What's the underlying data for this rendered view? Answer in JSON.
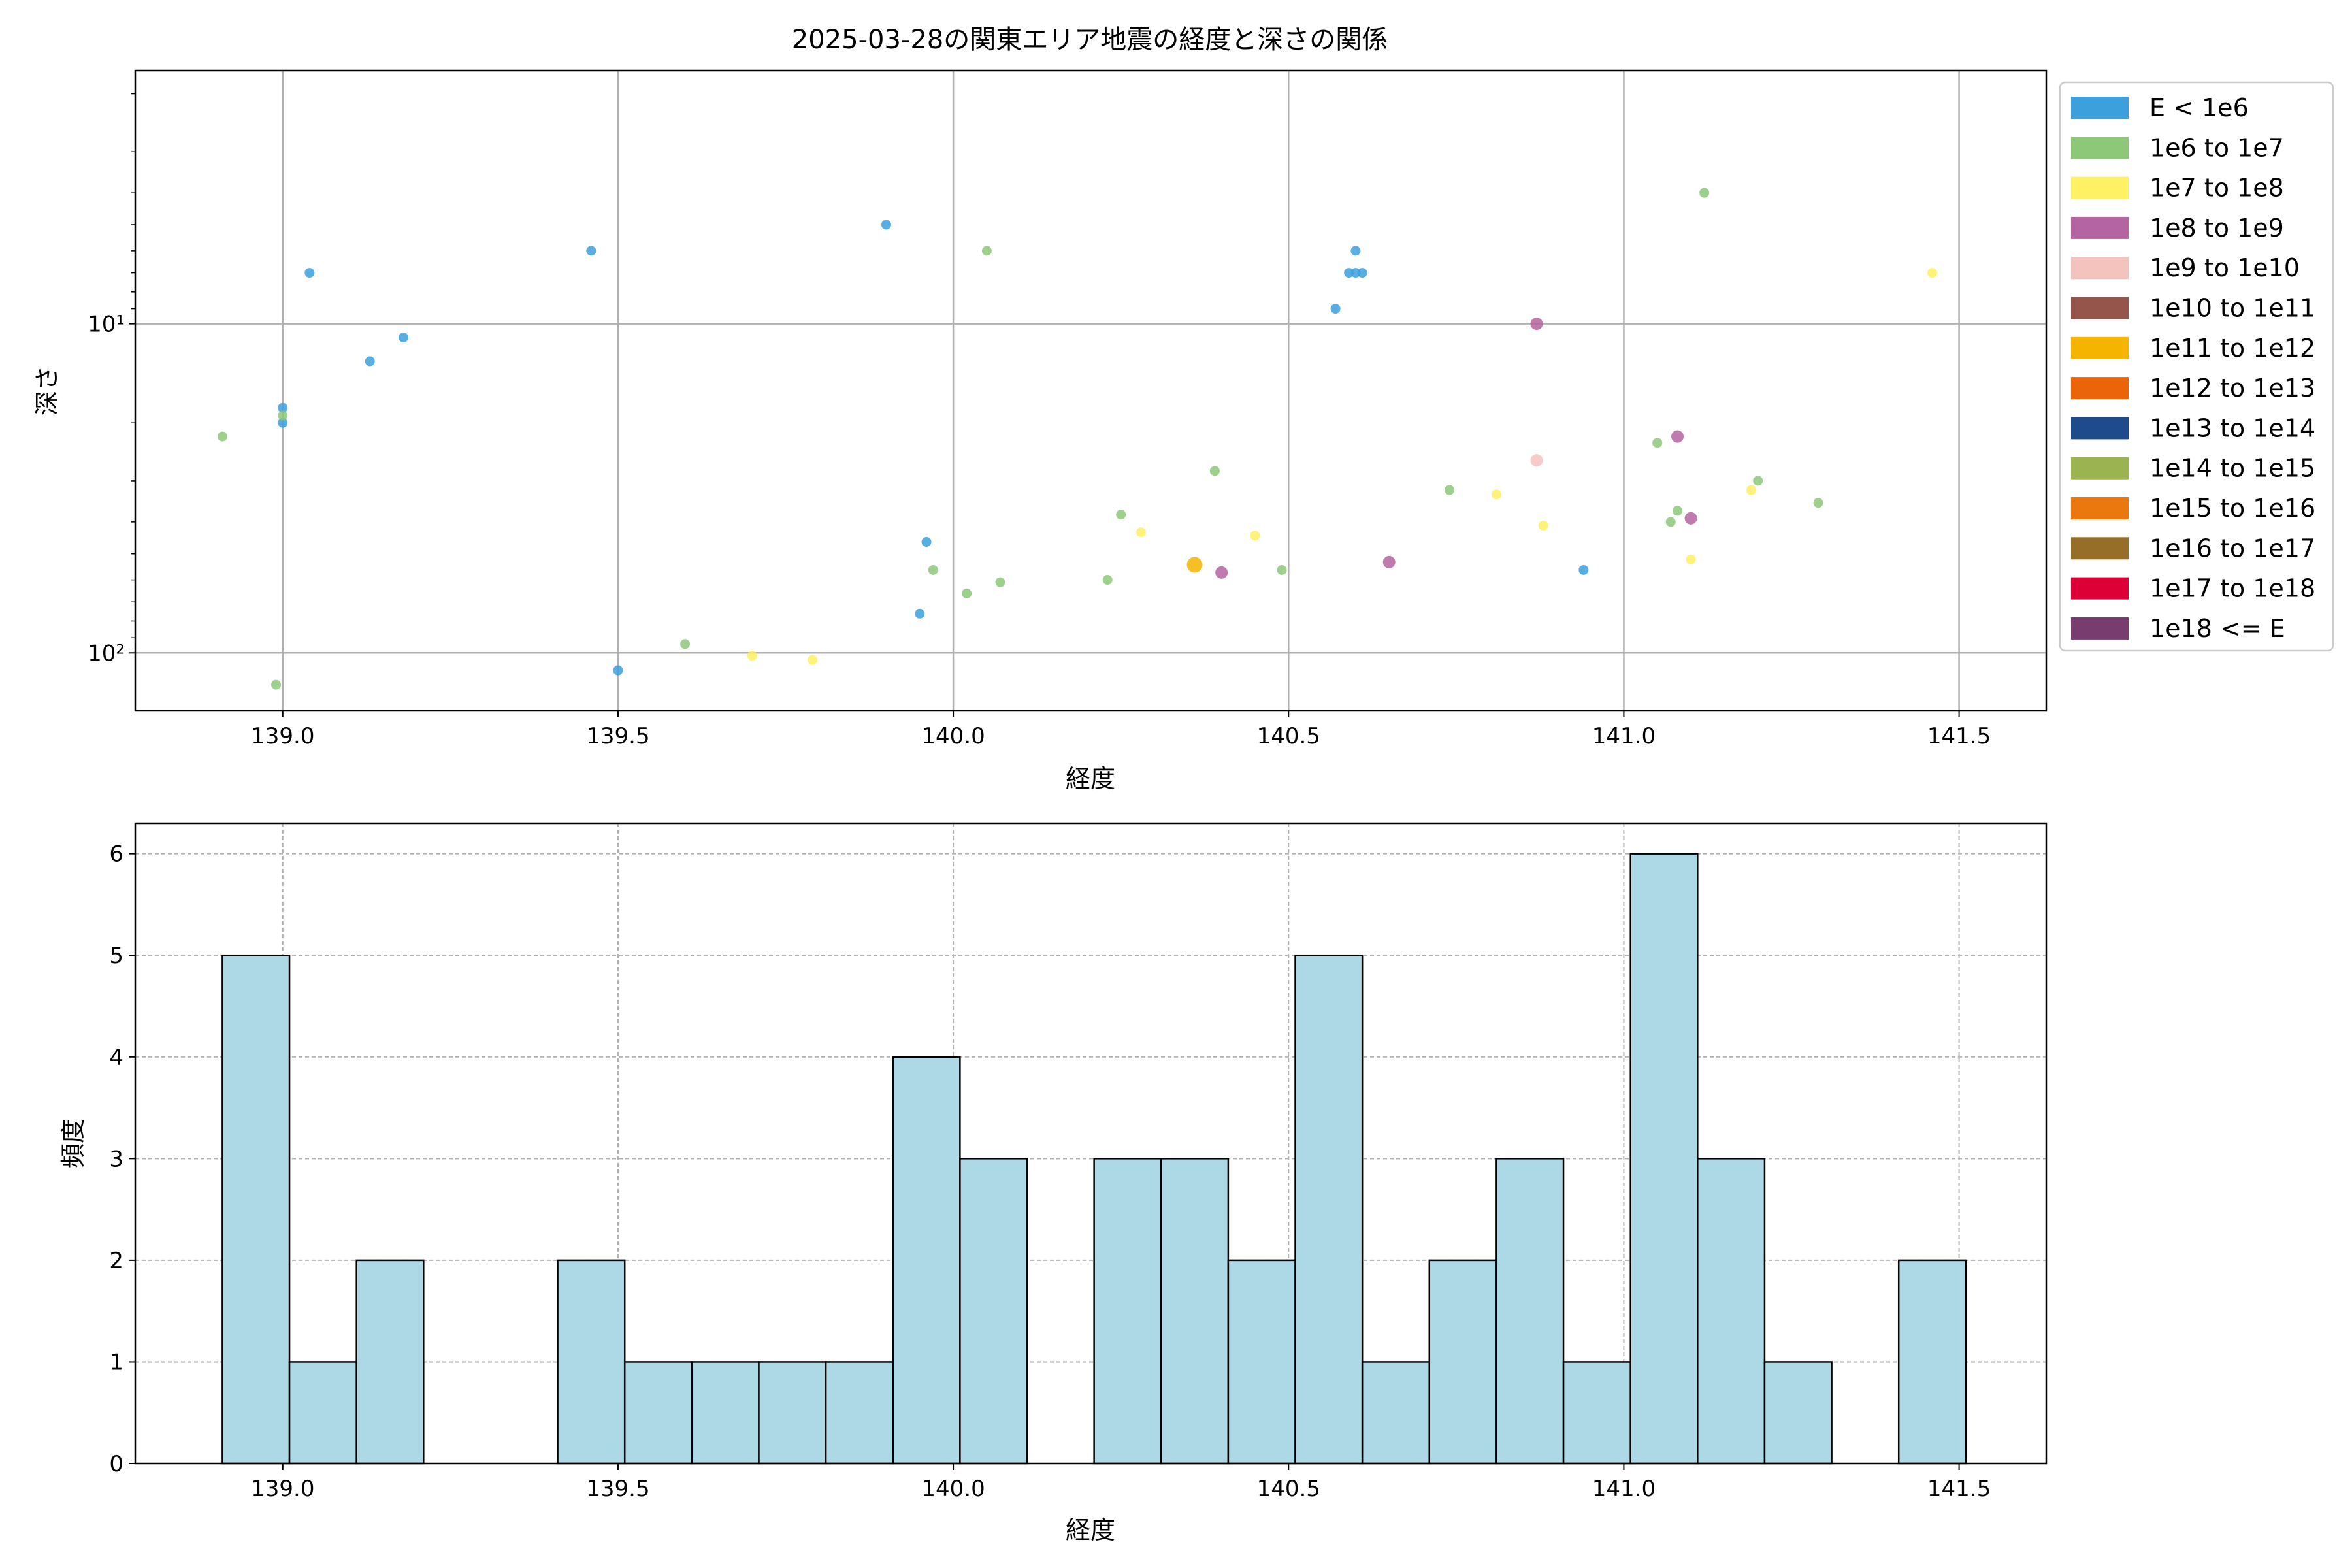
{
  "figure": {
    "title": "2025-03-28の関東エリア地震の経度と深さの関係"
  },
  "chart_data": [
    {
      "type": "scatter",
      "title": "2025-03-28の関東エリア地震の経度と深さの関係",
      "xlabel": "経度",
      "ylabel": "深さ",
      "x_scale": "linear",
      "y_scale": "log",
      "y_inverted": true,
      "xlim": [
        138.78,
        141.63
      ],
      "ylim": [
        150,
        1.7
      ],
      "x_ticks": [
        "139.0",
        "139.5",
        "140.0",
        "140.5",
        "141.0",
        "141.5"
      ],
      "x_tick_values": [
        139.0,
        139.5,
        140.0,
        140.5,
        141.0,
        141.5
      ],
      "y_ticks": [
        "10¹",
        "10²"
      ],
      "y_tick_values": [
        10,
        100
      ],
      "grid": true,
      "legend_position": "outside right",
      "legend": [
        {
          "label": "E < 1e6",
          "color": "#3ca0dc"
        },
        {
          "label": "1e6 to 1e7",
          "color": "#8cc878"
        },
        {
          "label": "1e7 to 1e8",
          "color": "#fff064"
        },
        {
          "label": "1e8 to 1e9",
          "color": "#b464a0"
        },
        {
          "label": "1e9 to 1e10",
          "color": "#f5c3be"
        },
        {
          "label": "1e10 to 1e11",
          "color": "#96554b"
        },
        {
          "label": "1e11 to 1e12",
          "color": "#f5b400"
        },
        {
          "label": "1e12 to 1e13",
          "color": "#eb6409"
        },
        {
          "label": "1e13 to 1e14",
          "color": "#1e4b8c"
        },
        {
          "label": "1e14 to 1e15",
          "color": "#9bb450"
        },
        {
          "label": "1e15 to 1e16",
          "color": "#eb780f"
        },
        {
          "label": "1e16 to 1e17",
          "color": "#966e28"
        },
        {
          "label": "1e17 to 1e18",
          "color": "#dc0037"
        },
        {
          "label": "1e18 <= E",
          "color": "#783c6e"
        }
      ],
      "points": [
        {
          "x": 139.04,
          "y": 7.0,
          "cls": 0
        },
        {
          "x": 139.13,
          "y": 13.0,
          "cls": 0
        },
        {
          "x": 139.18,
          "y": 11.0,
          "cls": 0
        },
        {
          "x": 139.0,
          "y": 18.0,
          "cls": 0
        },
        {
          "x": 139.0,
          "y": 20.0,
          "cls": 0
        },
        {
          "x": 139.46,
          "y": 6.0,
          "cls": 0
        },
        {
          "x": 139.5,
          "y": 113.0,
          "cls": 0
        },
        {
          "x": 139.9,
          "y": 5.0,
          "cls": 0
        },
        {
          "x": 139.96,
          "y": 46.0,
          "cls": 0
        },
        {
          "x": 139.95,
          "y": 76.0,
          "cls": 0
        },
        {
          "x": 140.57,
          "y": 9.0,
          "cls": 0
        },
        {
          "x": 140.59,
          "y": 7.0,
          "cls": 0
        },
        {
          "x": 140.6,
          "y": 7.0,
          "cls": 0
        },
        {
          "x": 140.61,
          "y": 7.0,
          "cls": 0
        },
        {
          "x": 140.6,
          "y": 6.0,
          "cls": 0
        },
        {
          "x": 140.94,
          "y": 56.0,
          "cls": 0
        },
        {
          "x": 138.91,
          "y": 22.0,
          "cls": 1
        },
        {
          "x": 139.0,
          "y": 19.0,
          "cls": 1
        },
        {
          "x": 138.99,
          "y": 125.0,
          "cls": 1
        },
        {
          "x": 139.6,
          "y": 94.0,
          "cls": 1
        },
        {
          "x": 140.05,
          "y": 6.0,
          "cls": 1
        },
        {
          "x": 139.97,
          "y": 56.0,
          "cls": 1
        },
        {
          "x": 140.02,
          "y": 66.0,
          "cls": 1
        },
        {
          "x": 140.07,
          "y": 61.0,
          "cls": 1
        },
        {
          "x": 140.23,
          "y": 60.0,
          "cls": 1
        },
        {
          "x": 140.25,
          "y": 38.0,
          "cls": 1
        },
        {
          "x": 140.39,
          "y": 28.0,
          "cls": 1
        },
        {
          "x": 140.49,
          "y": 56.0,
          "cls": 1
        },
        {
          "x": 140.74,
          "y": 32.0,
          "cls": 1
        },
        {
          "x": 141.05,
          "y": 23.0,
          "cls": 1
        },
        {
          "x": 141.08,
          "y": 37.0,
          "cls": 1
        },
        {
          "x": 141.07,
          "y": 40.0,
          "cls": 1
        },
        {
          "x": 141.12,
          "y": 4.0,
          "cls": 1
        },
        {
          "x": 141.2,
          "y": 30.0,
          "cls": 1
        },
        {
          "x": 141.29,
          "y": 35.0,
          "cls": 1
        },
        {
          "x": 139.7,
          "y": 102.0,
          "cls": 2
        },
        {
          "x": 139.79,
          "y": 105.0,
          "cls": 2
        },
        {
          "x": 140.28,
          "y": 43.0,
          "cls": 2
        },
        {
          "x": 140.45,
          "y": 44.0,
          "cls": 2
        },
        {
          "x": 140.81,
          "y": 33.0,
          "cls": 2
        },
        {
          "x": 140.88,
          "y": 41.0,
          "cls": 2
        },
        {
          "x": 141.1,
          "y": 52.0,
          "cls": 2
        },
        {
          "x": 141.19,
          "y": 32.0,
          "cls": 2
        },
        {
          "x": 141.46,
          "y": 7.0,
          "cls": 2
        },
        {
          "x": 140.4,
          "y": 57.0,
          "cls": 3
        },
        {
          "x": 140.65,
          "y": 53.0,
          "cls": 3
        },
        {
          "x": 140.87,
          "y": 10.0,
          "cls": 3
        },
        {
          "x": 141.08,
          "y": 22.0,
          "cls": 3
        },
        {
          "x": 141.1,
          "y": 39.0,
          "cls": 3
        },
        {
          "x": 140.87,
          "y": 26.0,
          "cls": 4
        },
        {
          "x": 140.36,
          "y": 54.0,
          "cls": 6
        }
      ]
    },
    {
      "type": "bar",
      "title": "",
      "xlabel": "経度",
      "ylabel": "頻度",
      "xlim": [
        138.78,
        141.63
      ],
      "ylim": [
        0,
        6.3
      ],
      "x_ticks": [
        "139.0",
        "139.5",
        "140.0",
        "140.5",
        "141.0",
        "141.5"
      ],
      "x_tick_values": [
        139.0,
        139.5,
        140.0,
        140.5,
        141.0,
        141.5
      ],
      "y_ticks": [
        "0",
        "1",
        "2",
        "3",
        "4",
        "5",
        "6"
      ],
      "y_tick_values": [
        0,
        1,
        2,
        3,
        4,
        5,
        6
      ],
      "grid": true,
      "bar_color": "#add8e6",
      "bin_start": 138.91,
      "bin_width": 0.1,
      "values": [
        5,
        1,
        2,
        0,
        0,
        2,
        1,
        1,
        1,
        1,
        4,
        3,
        0,
        3,
        3,
        2,
        5,
        1,
        2,
        3,
        1,
        6,
        3,
        1,
        0,
        2
      ]
    }
  ]
}
